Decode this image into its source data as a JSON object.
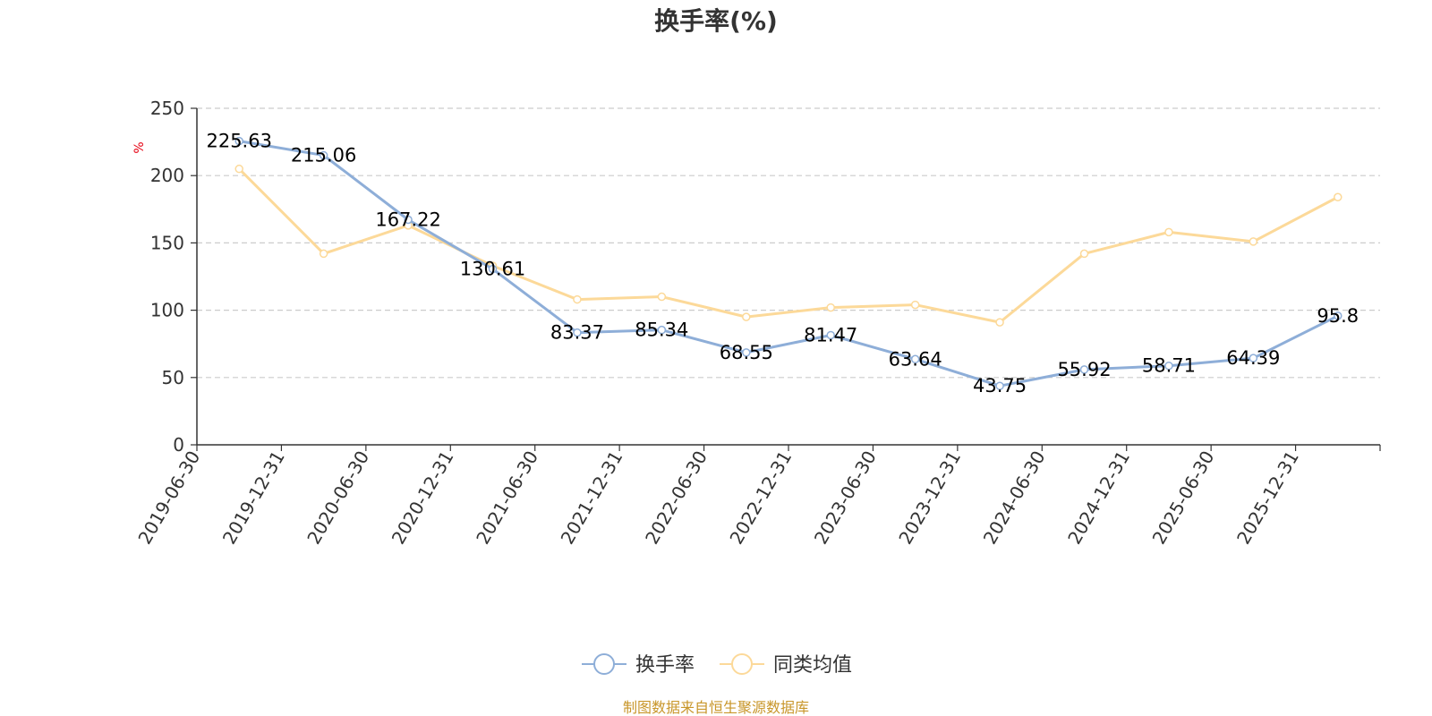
{
  "chart_data": {
    "type": "line",
    "title": "换手率(%)",
    "ylabel": "%",
    "ylim": [
      0,
      250
    ],
    "yticks": [
      0,
      50,
      100,
      150,
      200,
      250
    ],
    "grid": true,
    "legend_position": "bottom",
    "categories": [
      "2019-06-30",
      "2019-12-31",
      "2020-06-30",
      "2020-12-31",
      "2021-06-30",
      "2021-12-31",
      "2022-06-30",
      "2022-12-31",
      "2023-06-30",
      "2023-12-31",
      "2024-06-30",
      "2024-12-31",
      "2025-06-30",
      "2025-12-31"
    ],
    "series": [
      {
        "name": "换手率",
        "color": "#8eaed8",
        "values": [
          225.63,
          215.06,
          167.22,
          130.61,
          83.37,
          85.34,
          68.55,
          81.47,
          63.64,
          43.75,
          55.92,
          58.71,
          64.39,
          95.8
        ],
        "labels": [
          "225.63",
          "215.06",
          "167.22",
          "130.61",
          "83.37",
          "85.34",
          "68.55",
          "81.47",
          "63.64",
          "43.75",
          "55.92",
          "58.71",
          "64.39",
          "95.8"
        ]
      },
      {
        "name": "同类均值",
        "color": "#fcd999",
        "values": [
          205,
          142,
          163,
          133,
          108,
          110,
          95,
          102,
          104,
          91,
          142,
          158,
          151,
          184
        ]
      }
    ],
    "source": "制图数据来自恒生聚源数据库"
  }
}
